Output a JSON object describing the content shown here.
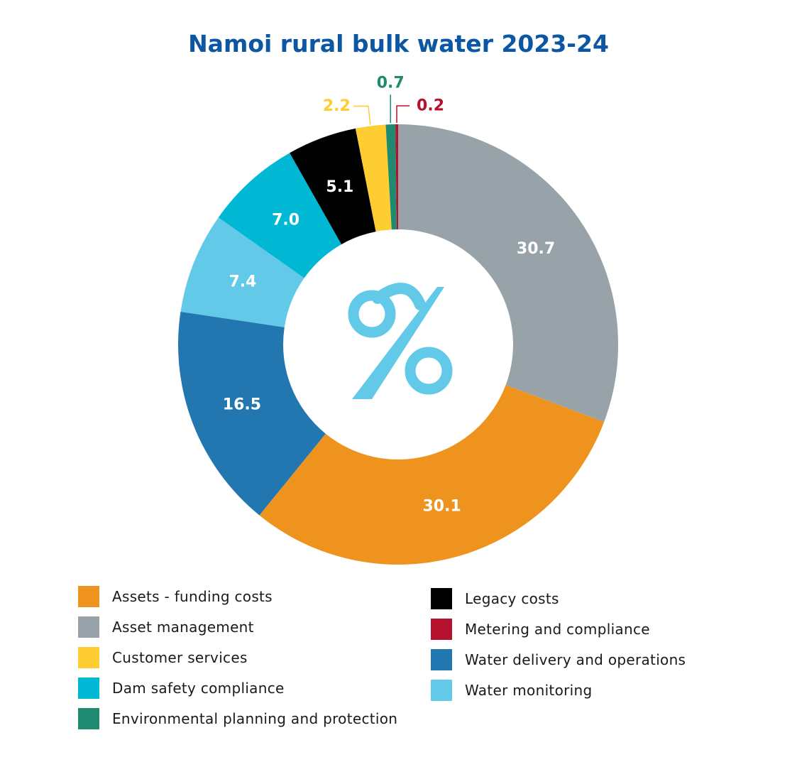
{
  "chart_data": {
    "type": "pie",
    "title": "Namoi rural bulk water 2023-24",
    "center_icon": "percent-icon",
    "slices": [
      {
        "label": "Asset management",
        "value": 30.7,
        "display": "30.7",
        "color": "#97a3a9"
      },
      {
        "label": "Assets - funding costs",
        "value": 30.1,
        "display": "30.1",
        "color": "#ee941e"
      },
      {
        "label": "Water delivery and operations",
        "value": 16.5,
        "display": "16.5",
        "color": "#2377b0"
      },
      {
        "label": "Water monitoring",
        "value": 7.4,
        "display": "7.4",
        "color": "#62cae8"
      },
      {
        "label": "Dam safety compliance",
        "value": 7.0,
        "display": "7.0",
        "color": "#00b8d3"
      },
      {
        "label": "Legacy costs",
        "value": 5.1,
        "display": "5.1",
        "color": "#000000"
      },
      {
        "label": "Customer services",
        "value": 2.2,
        "display": "2.2",
        "color": "#fdcd31"
      },
      {
        "label": "Environmental planning and protection",
        "value": 0.7,
        "display": "0.7",
        "color": "#1f8a6f"
      },
      {
        "label": "Metering and compliance",
        "value": 0.2,
        "display": "0.2",
        "color": "#b5112f"
      }
    ],
    "legend_left": [
      {
        "label": "Assets - funding costs",
        "color": "#ee941e"
      },
      {
        "label": "Asset management",
        "color": "#97a3a9"
      },
      {
        "label": "Customer services",
        "color": "#fdcd31"
      },
      {
        "label": "Dam safety compliance",
        "color": "#00b8d3"
      },
      {
        "label": "Environmental planning and protection",
        "color": "#1f8a6f"
      }
    ],
    "legend_right": [
      {
        "label": "Legacy costs",
        "color": "#000000"
      },
      {
        "label": "Metering and compliance",
        "color": "#b5112f"
      },
      {
        "label": "Water delivery and operations",
        "color": "#2377b0"
      },
      {
        "label": "Water monitoring",
        "color": "#62cae8"
      }
    ]
  },
  "colors": {
    "title": "#0b57a4",
    "icon": "#62cae8"
  }
}
